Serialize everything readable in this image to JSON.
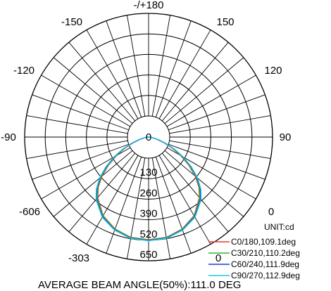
{
  "chart_data": {
    "type": "polar",
    "unit_label": "UNIT:cd",
    "footer": "AVERAGE BEAM ANGLE(50%):111.0 DEG",
    "angle_labels": [
      {
        "angle": 180,
        "text": "-/+180"
      },
      {
        "angle": -150,
        "text": "-150"
      },
      {
        "angle": 150,
        "text": "150"
      },
      {
        "angle": -120,
        "text": "-120"
      },
      {
        "angle": 120,
        "text": "120"
      },
      {
        "angle": -90,
        "text": "-90"
      },
      {
        "angle": 90,
        "text": "90"
      },
      {
        "angle": -60,
        "text": "-606"
      },
      {
        "angle": 60,
        "text": "0"
      },
      {
        "angle": -30,
        "text": "-303"
      },
      {
        "angle": 30,
        "text": "0"
      }
    ],
    "radial_max": 650,
    "ring_values": [
      130,
      260,
      390,
      520,
      650
    ],
    "radial_tick_labels": [
      "0",
      "130",
      "260",
      "390",
      "520",
      "650"
    ],
    "angle_grid_step_deg": 10,
    "series": [
      {
        "name": "C0/180,109.1deg",
        "color": "#e53935",
        "angles": [
          0,
          10,
          20,
          30,
          40,
          45,
          50,
          55,
          60,
          65,
          70,
          75,
          80,
          85,
          90
        ],
        "values": [
          650,
          645,
          620,
          575,
          500,
          450,
          385,
          310,
          235,
          165,
          100,
          55,
          25,
          8,
          0
        ]
      },
      {
        "name": "C30/210,110.2deg",
        "color": "#2db82d",
        "angles": [
          0,
          10,
          20,
          30,
          40,
          45,
          50,
          55,
          60,
          65,
          70,
          75,
          80,
          85,
          90
        ],
        "values": [
          652,
          647,
          622,
          578,
          505,
          455,
          392,
          318,
          242,
          172,
          106,
          60,
          28,
          9,
          0
        ]
      },
      {
        "name": "C60/240,111.9deg",
        "color": "#1e3adb",
        "angles": [
          0,
          10,
          20,
          30,
          40,
          45,
          50,
          55,
          60,
          65,
          70,
          75,
          80,
          85,
          90
        ],
        "values": [
          655,
          650,
          626,
          583,
          512,
          463,
          400,
          326,
          250,
          178,
          112,
          64,
          30,
          10,
          0
        ]
      },
      {
        "name": "C90/270,112.9deg",
        "color": "#1ec8e8",
        "angles": [
          0,
          10,
          20,
          30,
          40,
          45,
          50,
          55,
          60,
          65,
          70,
          75,
          80,
          85,
          90
        ],
        "values": [
          657,
          652,
          628,
          587,
          517,
          468,
          405,
          331,
          255,
          182,
          116,
          67,
          32,
          11,
          0
        ]
      }
    ]
  }
}
